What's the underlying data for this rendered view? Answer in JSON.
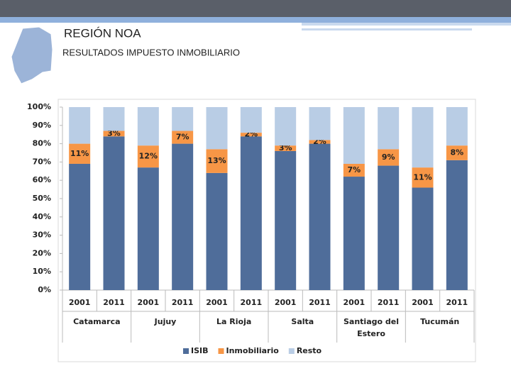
{
  "header": {
    "title": "REGIÓN NOA",
    "subtitle": "RESULTADOS IMPUESTO INMOBILIARIO"
  },
  "chart_data": {
    "type": "stacked_bar",
    "categories": [
      "2001",
      "2011",
      "2001",
      "2011",
      "2001",
      "2011",
      "2001",
      "2011",
      "2001",
      "2011",
      "2001",
      "2011"
    ],
    "groups": [
      "Catamarca",
      "Jujuy",
      "La Rioja",
      "Salta",
      "Santiago del Estero",
      "Tucumán"
    ],
    "series": [
      {
        "name": "ISIB",
        "color": "#4f6d9a",
        "values": [
          69,
          84,
          67,
          80,
          64,
          84,
          76,
          80,
          62,
          68,
          56,
          71
        ]
      },
      {
        "name": "Inmobiliario",
        "color": "#f79646",
        "values": [
          11,
          3,
          12,
          7,
          13,
          2,
          3,
          2,
          7,
          9,
          11,
          8
        ],
        "value_labels": [
          "11%",
          "3%",
          "12%",
          "7%",
          "13%",
          "2%",
          "3%",
          "2%",
          "7%",
          "9%",
          "11%",
          "8%"
        ]
      },
      {
        "name": "Resto",
        "color": "#b9cde5",
        "values": [
          20,
          13,
          21,
          13,
          23,
          14,
          21,
          18,
          31,
          23,
          33,
          21
        ]
      }
    ],
    "ylim": [
      0,
      100
    ],
    "yticks": [
      {
        "value": 0,
        "label": "0%"
      },
      {
        "value": 10,
        "label": "10%"
      },
      {
        "value": 20,
        "label": "20%"
      },
      {
        "value": 30,
        "label": "30%"
      },
      {
        "value": 40,
        "label": "40%"
      },
      {
        "value": 50,
        "label": "50%"
      },
      {
        "value": 60,
        "label": "60%"
      },
      {
        "value": 70,
        "label": "70%"
      },
      {
        "value": 80,
        "label": "80%"
      },
      {
        "value": 90,
        "label": "90%"
      },
      {
        "value": 100,
        "label": "100%"
      }
    ],
    "legend": "bottom"
  }
}
